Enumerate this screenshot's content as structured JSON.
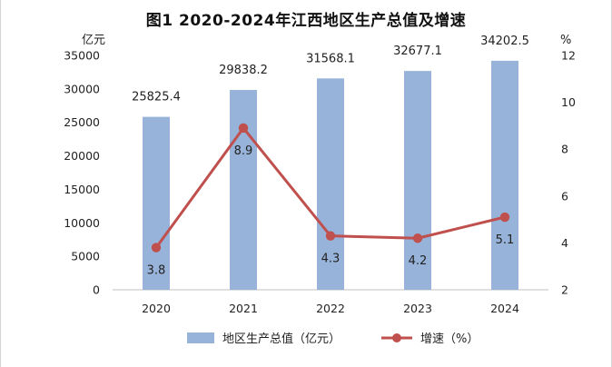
{
  "chart_data": {
    "type": "bar+line",
    "title": "图1  2020-2024年江西地区生产总值及增速",
    "categories": [
      "2020",
      "2021",
      "2022",
      "2023",
      "2024"
    ],
    "series": [
      {
        "name": "地区生产总值（亿元）",
        "type": "bar",
        "axis": "left",
        "values": [
          25825.4,
          29838.2,
          31568.1,
          32677.1,
          34202.5
        ],
        "color": "#97b3d9"
      },
      {
        "name": "增速（%）",
        "type": "line",
        "axis": "right",
        "values": [
          3.8,
          8.9,
          4.3,
          4.2,
          5.1
        ],
        "color": "#c0504d"
      }
    ],
    "y_left": {
      "unit": "亿元",
      "min": 0,
      "max": 35000,
      "step": 5000,
      "ticks": [
        "0",
        "5000",
        "10000",
        "15000",
        "20000",
        "25000",
        "30000",
        "35000"
      ]
    },
    "y_right": {
      "unit": "%",
      "min": 2,
      "max": 12,
      "step": 2,
      "ticks": [
        "2",
        "4",
        "6",
        "8",
        "10",
        "12"
      ]
    },
    "bar_labels": [
      "25825.4",
      "29838.2",
      "31568.1",
      "32677.1",
      "34202.5"
    ],
    "line_labels": [
      "3.8",
      "8.9",
      "4.3",
      "4.2",
      "5.1"
    ],
    "legend_position": "bottom"
  }
}
